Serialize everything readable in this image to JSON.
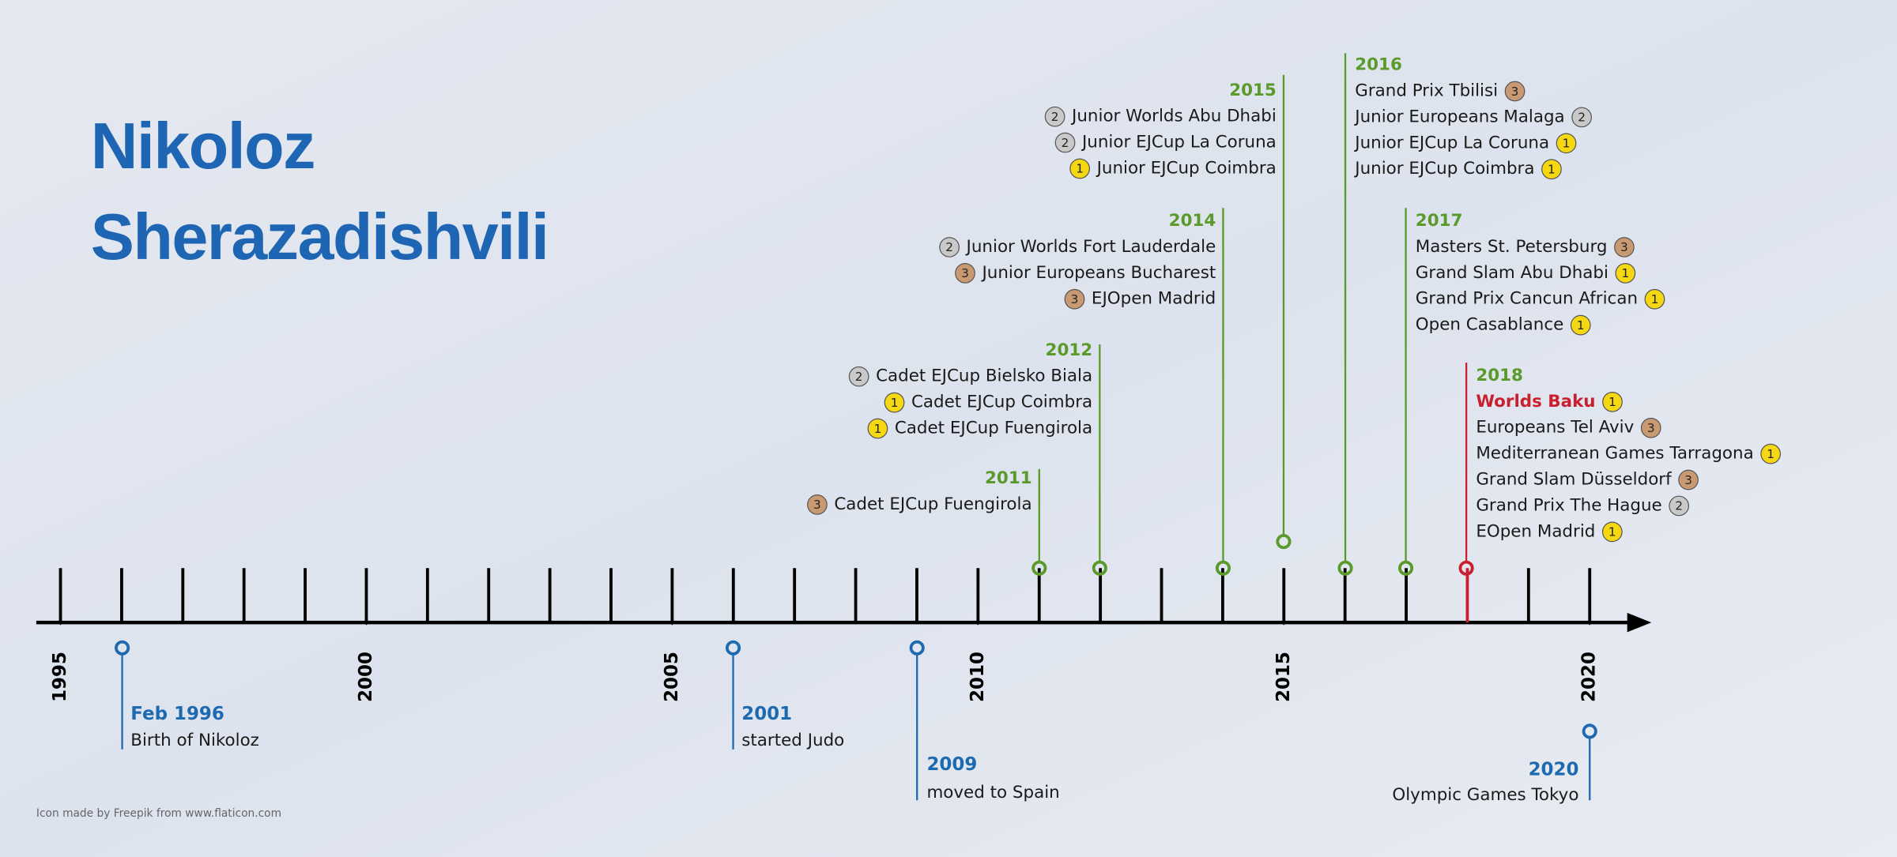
{
  "title": [
    "Nikoloz",
    "Sherazadishvili"
  ],
  "axis": {
    "labels": [
      1995,
      2000,
      2005,
      2010,
      2015,
      2020
    ]
  },
  "events": [
    {
      "date": "Feb 1996",
      "text": "Birth of Nikoloz"
    },
    {
      "date": "2001",
      "text": "started Judo"
    },
    {
      "date": "2009",
      "text": "moved to Spain"
    },
    {
      "date": "2020",
      "text": "Olympic Games Tokyo"
    }
  ],
  "achievements": [
    {
      "year": "2011",
      "results": [
        {
          "name": "Cadet EJCup Fuengirola",
          "medal": 3
        }
      ]
    },
    {
      "year": "2012",
      "results": [
        {
          "name": "Cadet EJCup Bielsko Biala",
          "medal": 2
        },
        {
          "name": "Cadet EJCup Coimbra",
          "medal": 1
        },
        {
          "name": "Cadet EJCup Fuengirola",
          "medal": 1
        }
      ]
    },
    {
      "year": "2014",
      "results": [
        {
          "name": "Junior Worlds Fort Lauderdale",
          "medal": 2
        },
        {
          "name": "Junior Europeans Bucharest",
          "medal": 3
        },
        {
          "name": "EJOpen Madrid",
          "medal": 3
        }
      ]
    },
    {
      "year": "2015",
      "results": [
        {
          "name": "Junior Worlds Abu Dhabi",
          "medal": 2
        },
        {
          "name": "Junior EJCup La Coruna",
          "medal": 2
        },
        {
          "name": "Junior EJCup Coimbra",
          "medal": 1
        }
      ]
    },
    {
      "year": "2016",
      "results": [
        {
          "name": "Grand Prix Tbilisi",
          "medal": 3
        },
        {
          "name": "Junior Europeans Malaga",
          "medal": 2
        },
        {
          "name": "Junior EJCup La Coruna",
          "medal": 1
        },
        {
          "name": "Junior EJCup Coimbra",
          "medal": 1
        }
      ]
    },
    {
      "year": "2017",
      "results": [
        {
          "name": "Masters St. Petersburg",
          "medal": 3
        },
        {
          "name": "Grand Slam Abu Dhabi",
          "medal": 1
        },
        {
          "name": "Grand Prix Cancun African",
          "medal": 1
        },
        {
          "name": "Open Casablance",
          "medal": 1
        }
      ]
    },
    {
      "year": "2018",
      "results": [
        {
          "name": "Worlds Baku",
          "medal": 1
        },
        {
          "name": "Europeans Tel Aviv",
          "medal": 3
        },
        {
          "name": "Mediterranean Games Tarragona",
          "medal": 1
        },
        {
          "name": "Grand Slam Düsseldorf",
          "medal": 3
        },
        {
          "name": "Grand Prix The Hague",
          "medal": 2
        },
        {
          "name": "EOpen Madrid",
          "medal": 1
        }
      ]
    }
  ],
  "credit": "Icon made by Freepik from www.flaticon.com"
}
